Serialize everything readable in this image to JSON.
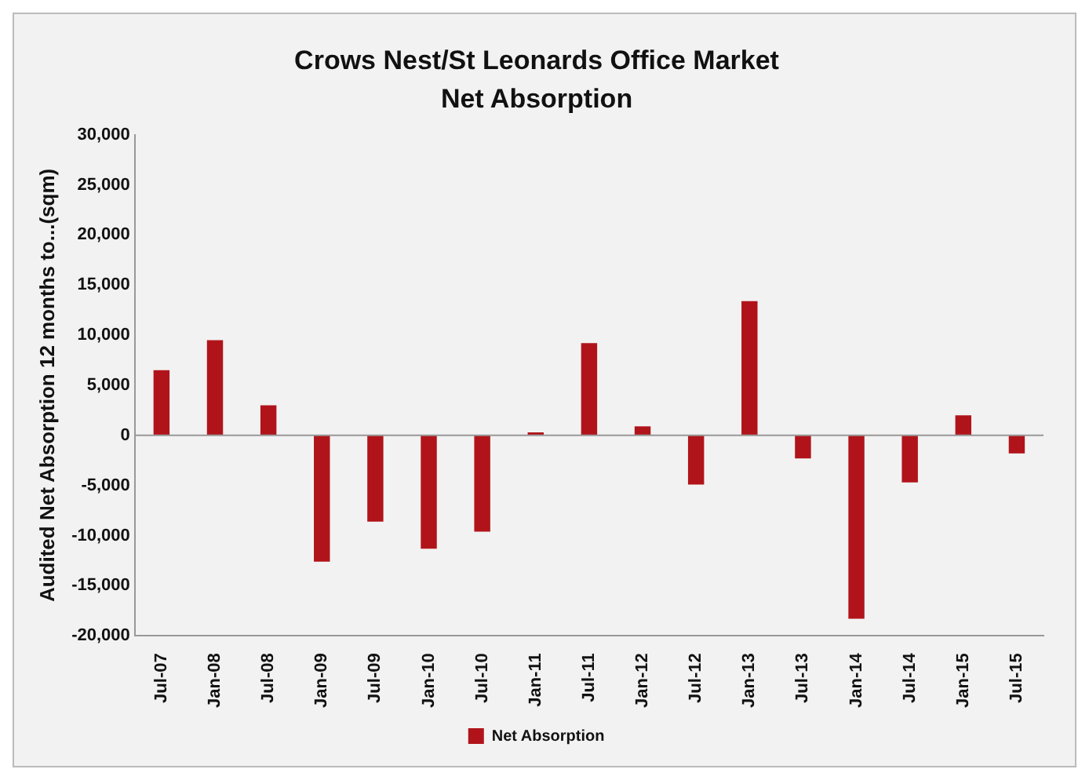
{
  "chart_data": {
    "type": "bar",
    "title": "Crows Nest/St Leonards Office Market",
    "subtitle": "Net Absorption",
    "ylabel": "Audited Net Absorption 12 months to...(sqm)",
    "categories": [
      "Jul-07",
      "Jan-08",
      "Jul-08",
      "Jan-09",
      "Jul-09",
      "Jan-10",
      "Jul-10",
      "Jan-11",
      "Jul-11",
      "Jan-12",
      "Jul-12",
      "Jan-13",
      "Jul-13",
      "Jan-14",
      "Jul-14",
      "Jan-15",
      "Jul-15"
    ],
    "series": [
      {
        "name": "Net Absorption",
        "color": "#b0141a",
        "values": [
          6500,
          9500,
          3000,
          -12600,
          -8600,
          -11300,
          -9600,
          300,
          9200,
          900,
          -4900,
          13400,
          -2300,
          -18300,
          -4700,
          2000,
          -1800
        ]
      }
    ],
    "ylim": [
      -20000,
      30000
    ],
    "yticks": [
      {
        "value": -20000,
        "label": "-20,000"
      },
      {
        "value": -15000,
        "label": "-15,000"
      },
      {
        "value": -10000,
        "label": "-10,000"
      },
      {
        "value": -5000,
        "label": "-5,000"
      },
      0,
      {
        "value": 5000,
        "label": "5,000"
      },
      {
        "value": 10000,
        "label": "10,000"
      },
      {
        "value": 15000,
        "label": "15,000"
      },
      {
        "value": 20000,
        "label": "20,000"
      },
      {
        "value": 25000,
        "label": "25,000"
      },
      {
        "value": 30000,
        "label": "30,000"
      }
    ],
    "legend": "bottom"
  }
}
